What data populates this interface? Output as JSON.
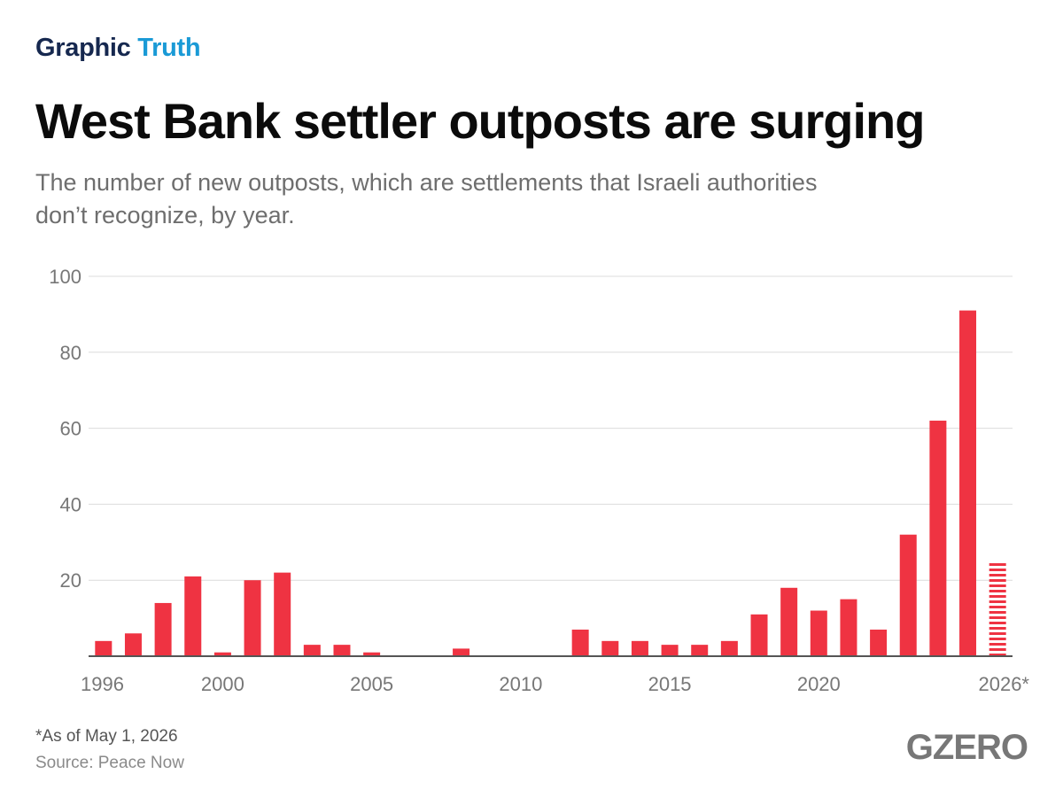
{
  "brand": {
    "part1": "Graphic",
    "part2": "Truth"
  },
  "title": "West Bank settler outposts are surging",
  "subtitle": "The number of new outposts, which are settlements that Israeli authorities don’t recognize, by year.",
  "footnote": "*As of May 1, 2026",
  "source": "Source: Peace Now",
  "logo": "GZERO",
  "colors": {
    "bar": "#ef3342",
    "grid": "#dcdcdc",
    "axis": "#555555",
    "tick_text": "#777777"
  },
  "chart_data": {
    "type": "bar",
    "categories": [
      "1996",
      "1997",
      "1998",
      "1999",
      "2000",
      "2001",
      "2002",
      "2003",
      "2004",
      "2005",
      "2006",
      "2007",
      "2008",
      "2009",
      "2010",
      "2011",
      "2012",
      "2013",
      "2014",
      "2015",
      "2016",
      "2017",
      "2018",
      "2019",
      "2020",
      "2021",
      "2022",
      "2023",
      "2024",
      "2025",
      "2026*"
    ],
    "values": [
      4,
      6,
      14,
      21,
      1,
      20,
      22,
      3,
      3,
      1,
      0,
      0,
      2,
      0,
      0,
      0,
      7,
      4,
      4,
      3,
      3,
      4,
      11,
      18,
      12,
      15,
      7,
      32,
      62,
      91,
      25
    ],
    "partial_categories": [
      "2026*"
    ],
    "x_tick_labels": [
      "1996",
      "2000",
      "2005",
      "2010",
      "2015",
      "2020",
      "2026*"
    ],
    "y_ticks": [
      20,
      40,
      60,
      80,
      100
    ],
    "ylim": [
      0,
      100
    ],
    "grid": true,
    "legend": "none"
  }
}
